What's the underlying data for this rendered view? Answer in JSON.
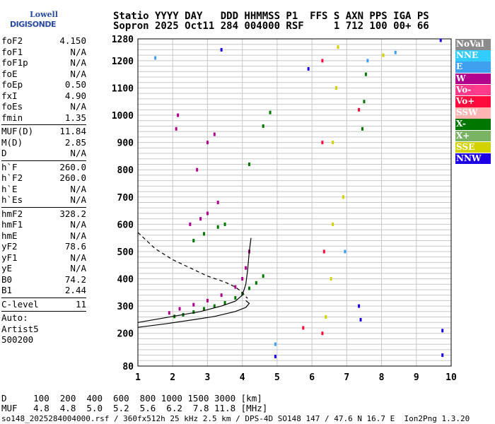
{
  "logo": {
    "line1": "Lowell",
    "line2": "DIGISONDE"
  },
  "header": {
    "line1": "Statio YYYY DAY   DDD HHMMSS P1  FFS S AXN PPS IGA PS",
    "line2": "Sopron 2025 Oct11 284 004000 RSF     1 712 100 00+ 66"
  },
  "params": [
    {
      "group": [
        {
          "k": "foF2",
          "v": "4.150"
        },
        {
          "k": "foF1",
          "v": "N/A"
        },
        {
          "k": "foF1p",
          "v": "N/A"
        },
        {
          "k": "foE",
          "v": "N/A"
        },
        {
          "k": "foEp",
          "v": "0.50"
        },
        {
          "k": "fxI",
          "v": "4.90"
        },
        {
          "k": "foEs",
          "v": "N/A"
        },
        {
          "k": "fmin",
          "v": "1.35"
        }
      ]
    },
    {
      "group": [
        {
          "k": "MUF(D)",
          "v": "11.84"
        },
        {
          "k": "M(D)",
          "v": "2.85"
        },
        {
          "k": "D",
          "v": "N/A"
        }
      ]
    },
    {
      "group": [
        {
          "k": "h`F",
          "v": "260.0"
        },
        {
          "k": "h`F2",
          "v": "260.0"
        },
        {
          "k": "h`E",
          "v": "N/A"
        },
        {
          "k": "h`Es",
          "v": "N/A"
        }
      ]
    },
    {
      "group": [
        {
          "k": "hmF2",
          "v": "328.2"
        },
        {
          "k": "hmF1",
          "v": "N/A"
        },
        {
          "k": "hmE",
          "v": "N/A"
        },
        {
          "k": "yF2",
          "v": "78.6"
        },
        {
          "k": "yF1",
          "v": "N/A"
        },
        {
          "k": "yE",
          "v": "N/A"
        },
        {
          "k": "B0",
          "v": "74.2"
        },
        {
          "k": "B1",
          "v": "2.44"
        }
      ]
    },
    {
      "group": [
        {
          "k": "C-level",
          "v": "11"
        }
      ]
    }
  ],
  "autoscale": {
    "line1": "Auto:",
    "line2": "Artist5",
    "line3": "500200"
  },
  "legend": [
    {
      "label": "NoVal",
      "color": "#8c8c8c"
    },
    {
      "label": "NNE",
      "color": "#33ccff"
    },
    {
      "label": "E",
      "color": "#3fa0f0"
    },
    {
      "label": "W",
      "color": "#b0008c"
    },
    {
      "label": "Vo-",
      "color": "#ff3c8c"
    },
    {
      "label": "Vo+",
      "color": "#ff0a3c"
    },
    {
      "label": "SSW",
      "color": "#ffb4b4"
    },
    {
      "label": "X-",
      "color": "#007800"
    },
    {
      "label": "X+",
      "color": "#78b464"
    },
    {
      "label": "SSE",
      "color": "#d2d200"
    },
    {
      "label": "NNW",
      "color": "#1e00e6"
    }
  ],
  "footer": {
    "d_line": "D     100  200  400  600  800 1000 1500 3000 [km]",
    "muf_line": "MUF   4.8  4.8  5.0  5.2  5.6  6.2  7.8 11.8 [MHz]",
    "file_line": "so148_2025284004000.rsf / 360fx512h 25 kHz 2.5 km / DPS-4D SO148 147 / 47.6 N 16.7 E  Ion2Png 1.3.20"
  },
  "chart_data": {
    "type": "scatter",
    "title": "",
    "xlabel": "",
    "ylabel": "",
    "xlim": [
      1,
      10
    ],
    "ylim": [
      80,
      1280
    ],
    "x_ticks": [
      1,
      2,
      3,
      4,
      5,
      6,
      7,
      8,
      9,
      10
    ],
    "y_ticks": [
      80,
      200,
      300,
      400,
      500,
      600,
      700,
      800,
      900,
      1000,
      1100,
      1200,
      1280
    ],
    "grid": true,
    "series": [
      {
        "name": "X-",
        "color": "#007800",
        "points": [
          [
            2.05,
            262
          ],
          [
            2.3,
            268
          ],
          [
            2.6,
            278
          ],
          [
            2.9,
            290
          ],
          [
            3.2,
            300
          ],
          [
            3.5,
            312
          ],
          [
            3.8,
            330
          ],
          [
            4.0,
            345
          ],
          [
            4.2,
            365
          ],
          [
            4.4,
            385
          ],
          [
            4.6,
            410
          ],
          [
            2.6,
            540
          ],
          [
            2.9,
            565
          ],
          [
            3.3,
            590
          ],
          [
            3.5,
            600
          ],
          [
            4.2,
            820
          ],
          [
            4.6,
            960
          ],
          [
            4.8,
            1010
          ],
          [
            7.45,
            950
          ],
          [
            7.5,
            1050
          ],
          [
            7.55,
            1150
          ]
        ]
      },
      {
        "name": "W",
        "color": "#b0008c",
        "points": [
          [
            1.9,
            275
          ],
          [
            2.2,
            290
          ],
          [
            2.6,
            305
          ],
          [
            3.0,
            320
          ],
          [
            3.4,
            340
          ],
          [
            3.8,
            370
          ],
          [
            4.0,
            400
          ],
          [
            4.1,
            440
          ],
          [
            4.2,
            500
          ],
          [
            2.5,
            600
          ],
          [
            2.8,
            620
          ],
          [
            3.0,
            640
          ],
          [
            3.3,
            680
          ],
          [
            2.7,
            800
          ],
          [
            3.0,
            900
          ],
          [
            3.2,
            930
          ],
          [
            2.1,
            950
          ],
          [
            2.15,
            1000
          ]
        ]
      },
      {
        "name": "SSE",
        "color": "#d2d200",
        "points": [
          [
            6.4,
            260
          ],
          [
            6.55,
            400
          ],
          [
            6.6,
            600
          ],
          [
            6.6,
            900
          ],
          [
            6.7,
            1100
          ],
          [
            6.75,
            1250
          ],
          [
            6.9,
            700
          ],
          [
            8.05,
            1220
          ]
        ]
      },
      {
        "name": "Vo+",
        "color": "#ff0a3c",
        "points": [
          [
            6.3,
            200
          ],
          [
            6.35,
            500
          ],
          [
            6.3,
            900
          ],
          [
            6.3,
            1200
          ],
          [
            5.75,
            220
          ],
          [
            7.35,
            1020
          ]
        ]
      },
      {
        "name": "NNW",
        "color": "#1e00e6",
        "points": [
          [
            7.35,
            300
          ],
          [
            7.4,
            250
          ],
          [
            4.95,
            115
          ],
          [
            9.75,
            120
          ],
          [
            9.75,
            210
          ],
          [
            9.7,
            1275
          ],
          [
            3.4,
            1240
          ],
          [
            5.9,
            1170
          ]
        ]
      },
      {
        "name": "E",
        "color": "#3fa0f0",
        "points": [
          [
            7.6,
            1200
          ],
          [
            8.4,
            1230
          ],
          [
            4.95,
            160
          ],
          [
            1.5,
            1210
          ],
          [
            6.95,
            500
          ]
        ]
      }
    ],
    "traces": [
      {
        "name": "virtual-height-O-trace",
        "style": "solid",
        "points": [
          [
            1.0,
            240
          ],
          [
            2.0,
            262
          ],
          [
            2.8,
            280
          ],
          [
            3.4,
            300
          ],
          [
            3.8,
            318
          ],
          [
            4.0,
            340
          ],
          [
            4.1,
            380
          ],
          [
            4.15,
            430
          ],
          [
            4.2,
            500
          ],
          [
            4.25,
            550
          ]
        ]
      },
      {
        "name": "virtual-height-X-trace",
        "style": "solid",
        "points": [
          [
            1.0,
            222
          ],
          [
            1.8,
            235
          ],
          [
            2.6,
            250
          ],
          [
            3.2,
            262
          ],
          [
            3.8,
            280
          ],
          [
            4.1,
            295
          ],
          [
            4.2,
            310
          ],
          [
            4.1,
            320
          ]
        ]
      },
      {
        "name": "profile-trace",
        "style": "dashed",
        "points": [
          [
            1.0,
            570
          ],
          [
            1.5,
            510
          ],
          [
            2.0,
            470
          ],
          [
            2.5,
            440
          ],
          [
            3.0,
            410
          ],
          [
            3.5,
            388
          ],
          [
            3.8,
            370
          ],
          [
            4.0,
            350
          ],
          [
            4.1,
            335
          ],
          [
            4.15,
            328
          ]
        ]
      }
    ]
  }
}
